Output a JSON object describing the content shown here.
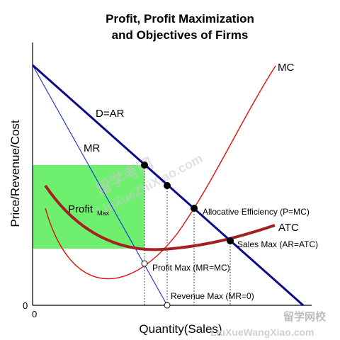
{
  "title": {
    "line1": "Profit, Profit Maximization",
    "line2": "and Objectives of Firms"
  },
  "axes": {
    "ylabel": "Price/Revenue/Cost",
    "xlabel": "Quantity(Sales)",
    "origin_y": "0",
    "origin_x": "0"
  },
  "curves": {
    "mc": "MC",
    "demand": "D=AR",
    "mr": "MR",
    "atc": "ATC"
  },
  "profit_area": {
    "label": "Profit",
    "subscript": "Max",
    "fill_color": "#6ef06e"
  },
  "points": {
    "profit_max": "Profit Max (MR=MC)",
    "revenue_max": "Revenue Max (MR=0)",
    "allocative_efficiency": "Allocative Efficiency (P=MC)",
    "sales_max": "Sales Max (AR=ATC)"
  },
  "colors": {
    "demand": "#0b0b8a",
    "mr": "#1a2bd8",
    "mc": "#e01010",
    "atc": "#a52020"
  },
  "watermark": {
    "cn_diag": "留学考网",
    "en_diag": "LiuXueZhiXiao.com",
    "cn_corner": "留学网校",
    "en_corner": "LiuXueWangXiao.com"
  }
}
